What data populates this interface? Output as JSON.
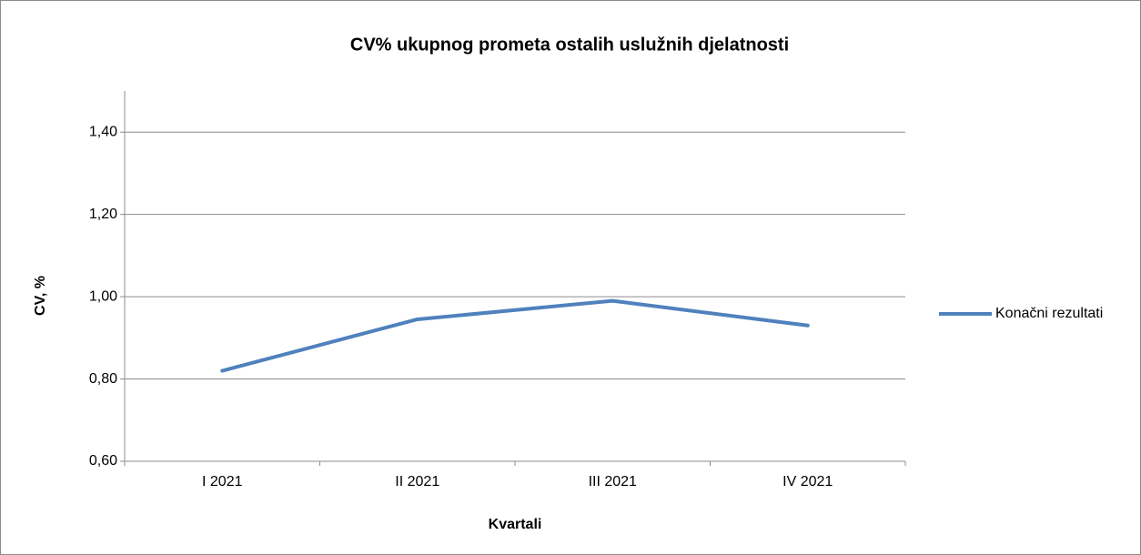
{
  "chart_data": {
    "type": "line",
    "title": "CV% ukupnog prometa ostalih uslužnih djelatnosti",
    "x_label": "Kvartali",
    "y_label": "CV, %",
    "categories": [
      "I 2021",
      "II 2021",
      "III 2021",
      "IV 2021"
    ],
    "series": [
      {
        "name": "Konačni rezultati",
        "color": "#4f81bd",
        "values": [
          0.82,
          0.945,
          0.99,
          0.93
        ]
      }
    ],
    "ylim": [
      0.6,
      1.5
    ],
    "yticks": [
      {
        "value": 0.6,
        "label": "0,60"
      },
      {
        "value": 0.8,
        "label": "0,80"
      },
      {
        "value": 1.0,
        "label": "1,00"
      },
      {
        "value": 1.2,
        "label": "1,20"
      },
      {
        "value": 1.4,
        "label": "1,40"
      }
    ],
    "grid": true,
    "legend": "right"
  }
}
